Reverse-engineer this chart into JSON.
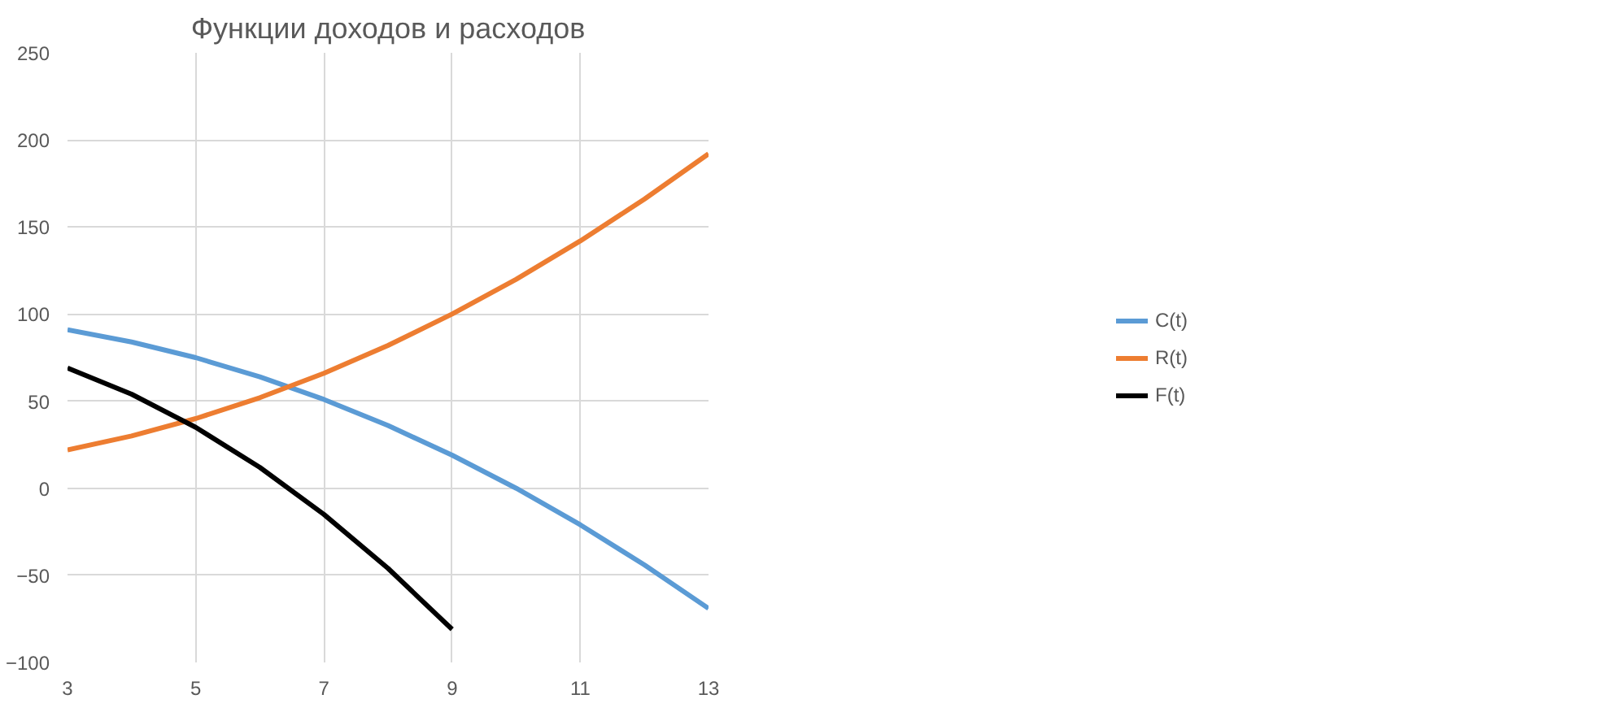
{
  "chart_data": {
    "type": "line",
    "title": "Функции доходов и расходов",
    "x": [
      3,
      4,
      5,
      6,
      7,
      8,
      9,
      10,
      11,
      12,
      13
    ],
    "series": [
      {
        "name": "C(t)",
        "color": "#5b9bd5",
        "values": [
          91,
          84,
          75,
          64,
          51,
          36,
          19,
          0,
          -21,
          -44,
          -69
        ]
      },
      {
        "name": "R(t)",
        "color": "#ed7d31",
        "values": [
          22,
          30,
          40,
          52,
          66,
          82,
          100,
          120,
          142,
          166,
          192
        ]
      },
      {
        "name": "F(t)",
        "color": "#000000",
        "values": [
          69,
          54,
          35,
          12,
          -15,
          -46,
          -81,
          null,
          null,
          null,
          null
        ]
      }
    ],
    "xlim": [
      3,
      13
    ],
    "xticks": [
      3,
      5,
      7,
      9,
      11,
      13
    ],
    "ylim": [
      -100,
      250
    ],
    "yticks": [
      -100,
      -50,
      0,
      50,
      100,
      150,
      200,
      250
    ],
    "grid": true,
    "legend": "right",
    "marker": "none",
    "line_style": "solid"
  }
}
